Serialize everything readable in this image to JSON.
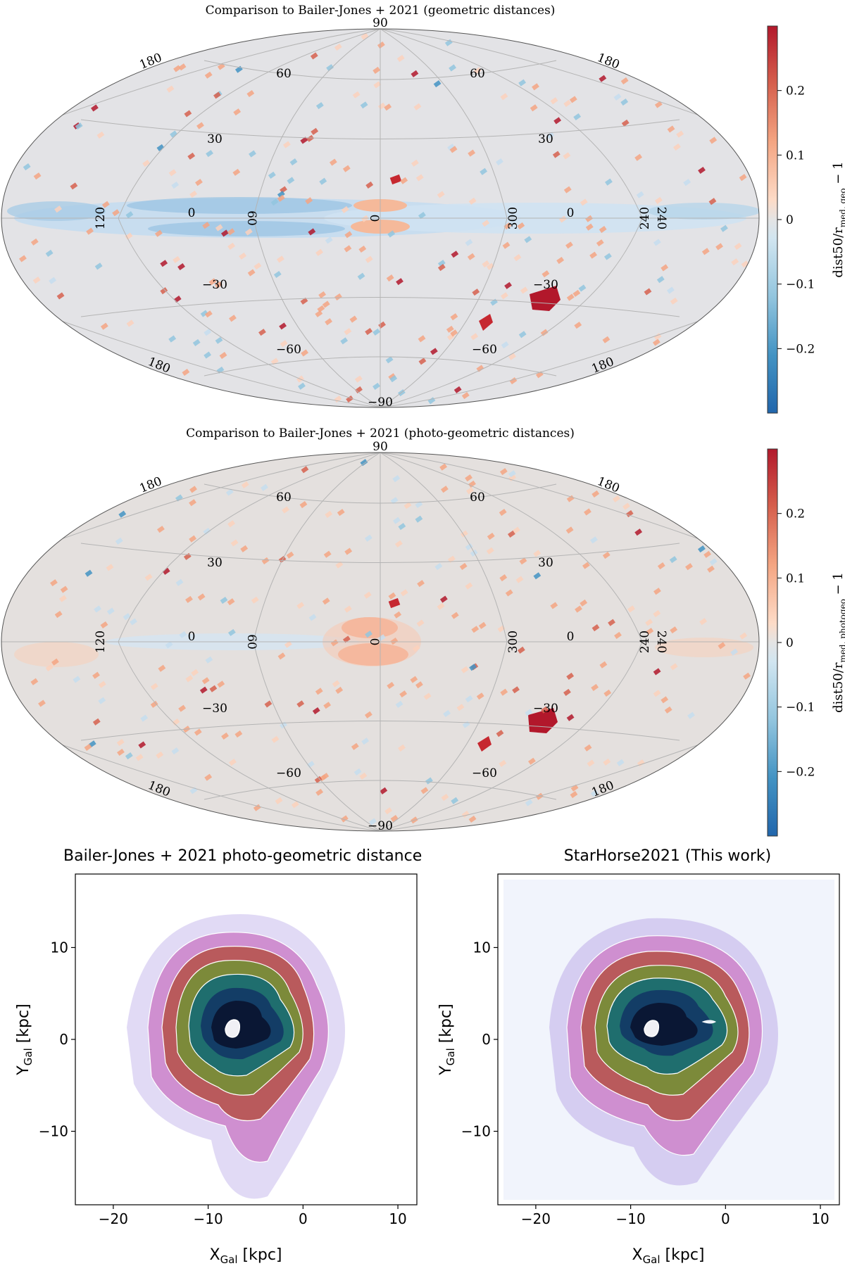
{
  "chart_data": [
    {
      "type": "heatmap",
      "projection": "hammer-aitoff",
      "title": "Comparison to Bailer-Jones + 2021 (geometric distances)",
      "colorbar": {
        "label_main": "dist50/r",
        "label_sub": "med, geo",
        "label_tail": " − 1",
        "ticks": [
          0.2,
          0.1,
          0,
          -0.1,
          -0.2
        ],
        "tick_labels": [
          "0.2",
          "0.1",
          "0",
          "−0.1",
          "−0.2"
        ],
        "range": [
          -0.3,
          0.3
        ],
        "colormap": "RdBu_r"
      },
      "grid_labels": {
        "lat_top": "90",
        "lat_bottom": "−90",
        "lat_60n_left": "60",
        "lat_60n_right": "60",
        "lat_30n_left": "30",
        "lat_30n_right": "30",
        "lat_0_left": "0",
        "lat_0_right": "0",
        "lat_30s_left": "−30",
        "lat_30s_right": "−30",
        "lat_60s_left": "−60",
        "lat_60s_right": "−60",
        "lon_120": "120",
        "lon_60": "60",
        "lon_0": "0",
        "lon_300": "300",
        "lon_240": "240",
        "lon_180_ul": "180",
        "lon_180_ur": "180",
        "lon_180_ll": "180",
        "lon_180_lr": "180"
      }
    },
    {
      "type": "heatmap",
      "projection": "hammer-aitoff",
      "title": "Comparison to Bailer-Jones + 2021 (photo-geometric distances)",
      "colorbar": {
        "label_main": "dist50/r",
        "label_sub": "med, photogeo",
        "label_tail": " − 1",
        "ticks": [
          0.2,
          0.1,
          0,
          -0.1,
          -0.2
        ],
        "tick_labels": [
          "0.2",
          "0.1",
          "0",
          "−0.1",
          "−0.2"
        ],
        "range": [
          -0.3,
          0.3
        ],
        "colormap": "RdBu_r"
      },
      "grid_labels": {
        "lat_top": "90",
        "lat_bottom": "−90",
        "lat_60n_left": "60",
        "lat_60n_right": "60",
        "lat_30n_left": "30",
        "lat_30n_right": "30",
        "lat_0_left": "0",
        "lat_0_right": "0",
        "lat_30s_left": "−30",
        "lat_30s_right": "−30",
        "lat_60s_left": "−60",
        "lat_60s_right": "−60",
        "lon_120": "120",
        "lon_60": "60",
        "lon_0": "0",
        "lon_300": "300",
        "lon_240": "240",
        "lon_180_ul": "180",
        "lon_180_ur": "180",
        "lon_180_ll": "180",
        "lon_180_lr": "180"
      }
    },
    {
      "type": "heatmap",
      "title": "Bailer-Jones + 2021 photo-geometric distance",
      "xlabel_main": "X",
      "xlabel_sub": "Gal",
      "xlabel_unit": " [kpc]",
      "ylabel_main": "Y",
      "ylabel_sub": "Gal",
      "ylabel_unit": " [kpc]",
      "xlim": [
        -24,
        12
      ],
      "ylim": [
        -18,
        18
      ],
      "xticks": [
        -20,
        -10,
        0,
        10
      ],
      "xtick_labels": [
        "−20",
        "−10",
        "0",
        "10"
      ],
      "yticks": [
        10,
        0,
        -10
      ],
      "ytick_labels": [
        "10",
        "0",
        "−10"
      ],
      "density_peak": [
        -7.5,
        0
      ],
      "contour_levels": 6
    },
    {
      "type": "heatmap",
      "title": "StarHorse2021 (This work)",
      "xlabel_main": "X",
      "xlabel_sub": "Gal",
      "xlabel_unit": " [kpc]",
      "ylabel_main": "Y",
      "ylabel_sub": "Gal",
      "ylabel_unit": " [kpc]",
      "xlim": [
        -24,
        12
      ],
      "ylim": [
        -18,
        18
      ],
      "xticks": [
        -20,
        -10,
        0,
        10
      ],
      "xtick_labels": [
        "−20",
        "−10",
        "0",
        "10"
      ],
      "yticks": [
        10,
        0,
        -10
      ],
      "ytick_labels": [
        "10",
        "0",
        "−10"
      ],
      "density_peak": [
        -8,
        0
      ],
      "contour_levels": 6
    }
  ]
}
